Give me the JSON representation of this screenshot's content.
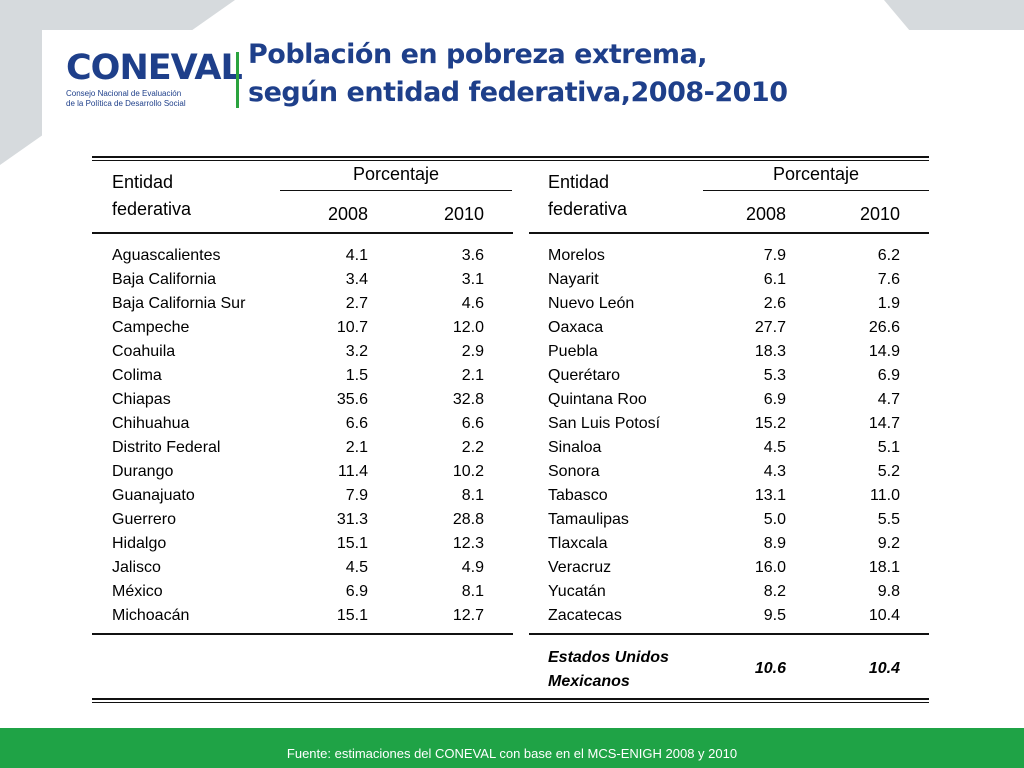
{
  "logo": {
    "word": "CONEVAL",
    "sub_line1": "Consejo Nacional de Evaluación",
    "sub_line2": "de la Política de Desarrollo Social"
  },
  "title": {
    "line1": "Población en pobreza extrema,",
    "line2": "según entidad federativa,2008-2010"
  },
  "table": {
    "col_entity_line1": "Entidad",
    "col_entity_line2": "federativa",
    "col_group": "Porcentaje",
    "col_2008": "2008",
    "col_2010": "2010",
    "left_rows": [
      {
        "name": "Aguascalientes",
        "v2008": "4.1",
        "v2010": "3.6"
      },
      {
        "name": "Baja California",
        "v2008": "3.4",
        "v2010": "3.1"
      },
      {
        "name": "Baja California Sur",
        "v2008": "2.7",
        "v2010": "4.6"
      },
      {
        "name": "Campeche",
        "v2008": "10.7",
        "v2010": "12.0"
      },
      {
        "name": "Coahuila",
        "v2008": "3.2",
        "v2010": "2.9"
      },
      {
        "name": "Colima",
        "v2008": "1.5",
        "v2010": "2.1"
      },
      {
        "name": "Chiapas",
        "v2008": "35.6",
        "v2010": "32.8"
      },
      {
        "name": "Chihuahua",
        "v2008": "6.6",
        "v2010": "6.6"
      },
      {
        "name": "Distrito Federal",
        "v2008": "2.1",
        "v2010": "2.2"
      },
      {
        "name": "Durango",
        "v2008": "11.4",
        "v2010": "10.2"
      },
      {
        "name": "Guanajuato",
        "v2008": "7.9",
        "v2010": "8.1"
      },
      {
        "name": "Guerrero",
        "v2008": "31.3",
        "v2010": "28.8"
      },
      {
        "name": "Hidalgo",
        "v2008": "15.1",
        "v2010": "12.3"
      },
      {
        "name": "Jalisco",
        "v2008": "4.5",
        "v2010": "4.9"
      },
      {
        "name": "México",
        "v2008": "6.9",
        "v2010": "8.1"
      },
      {
        "name": "Michoacán",
        "v2008": "15.1",
        "v2010": "12.7"
      }
    ],
    "right_rows": [
      {
        "name": "Morelos",
        "v2008": "7.9",
        "v2010": "6.2"
      },
      {
        "name": "Nayarit",
        "v2008": "6.1",
        "v2010": "7.6"
      },
      {
        "name": "Nuevo León",
        "v2008": "2.6",
        "v2010": "1.9"
      },
      {
        "name": "Oaxaca",
        "v2008": "27.7",
        "v2010": "26.6"
      },
      {
        "name": "Puebla",
        "v2008": "18.3",
        "v2010": "14.9"
      },
      {
        "name": "Querétaro",
        "v2008": "5.3",
        "v2010": "6.9"
      },
      {
        "name": "Quintana Roo",
        "v2008": "6.9",
        "v2010": "4.7"
      },
      {
        "name": "San Luis Potosí",
        "v2008": "15.2",
        "v2010": "14.7"
      },
      {
        "name": "Sinaloa",
        "v2008": "4.5",
        "v2010": "5.1"
      },
      {
        "name": "Sonora",
        "v2008": "4.3",
        "v2010": "5.2"
      },
      {
        "name": "Tabasco",
        "v2008": "13.1",
        "v2010": "11.0"
      },
      {
        "name": "Tamaulipas",
        "v2008": "5.0",
        "v2010": "5.5"
      },
      {
        "name": "Tlaxcala",
        "v2008": "8.9",
        "v2010": "9.2"
      },
      {
        "name": "Veracruz",
        "v2008": "16.0",
        "v2010": "18.1"
      },
      {
        "name": "Yucatán",
        "v2008": "8.2",
        "v2010": "9.8"
      },
      {
        "name": "Zacatecas",
        "v2008": "9.5",
        "v2010": "10.4"
      }
    ],
    "total": {
      "line1": "Estados Unidos",
      "line2": "Mexicanos",
      "v2008": "10.6",
      "v2010": "10.4"
    }
  },
  "footer": {
    "source": "Fuente: estimaciones del CONEVAL con base en el MCS-ENIGH 2008 y 2010"
  },
  "colors": {
    "brand_blue": "#1e3f8a",
    "brand_green": "#2aa33e",
    "footer_green": "#1fa346"
  }
}
